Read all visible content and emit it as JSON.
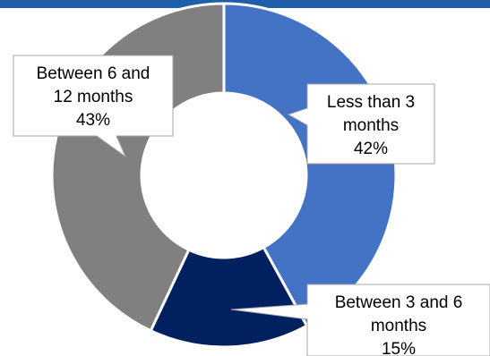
{
  "colors": {
    "header_bar": "#1f5ea8",
    "less_than_3_months": "#4472c4",
    "between_3_and_6_months": "#002060",
    "between_6_and_12_months": "#808080"
  },
  "chart_data": {
    "type": "pie",
    "variant": "doughnut",
    "categories": [
      "Less than 3 months",
      "Between 3 and 6 months",
      "Between 6 and 12 months"
    ],
    "values": [
      42,
      15,
      43
    ],
    "unit": "%",
    "labels": [
      {
        "lines": [
          "Less than 3",
          "months",
          "42%"
        ]
      },
      {
        "lines": [
          "Between 3 and 6",
          "months",
          "15%"
        ]
      },
      {
        "lines": [
          "Between 6 and",
          "12 months",
          "43%"
        ]
      }
    ]
  }
}
